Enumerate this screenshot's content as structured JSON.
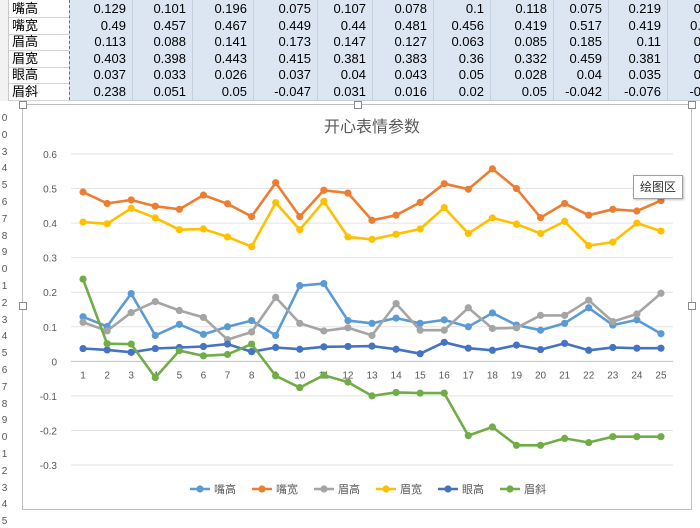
{
  "sheet": {
    "rows": [
      {
        "label": "嘴高",
        "values": [
          "0.129",
          "0.101",
          "0.196",
          "0.075",
          "0.107",
          "0.078",
          "0.1",
          "0.118",
          "0.075",
          "0.219",
          "0"
        ]
      },
      {
        "label": "嘴宽",
        "values": [
          "0.49",
          "0.457",
          "0.467",
          "0.449",
          "0.44",
          "0.481",
          "0.456",
          "0.419",
          "0.517",
          "0.419",
          "0."
        ]
      },
      {
        "label": "眉高",
        "values": [
          "0.113",
          "0.088",
          "0.141",
          "0.173",
          "0.147",
          "0.127",
          "0.063",
          "0.085",
          "0.185",
          "0.11",
          "0"
        ]
      },
      {
        "label": "眉宽",
        "values": [
          "0.403",
          "0.398",
          "0.443",
          "0.415",
          "0.381",
          "0.383",
          "0.36",
          "0.332",
          "0.459",
          "0.381",
          "0"
        ]
      },
      {
        "label": "眼高",
        "values": [
          "0.037",
          "0.033",
          "0.026",
          "0.037",
          "0.04",
          "0.043",
          "0.05",
          "0.028",
          "0.04",
          "0.035",
          "0"
        ]
      },
      {
        "label": "眉斜",
        "values": [
          "0.238",
          "0.051",
          "0.05",
          "-0.047",
          "0.031",
          "0.016",
          "0.02",
          "0.05",
          "-0.042",
          "-0.076",
          "-0"
        ]
      }
    ],
    "row_numbers": [
      "0",
      "0",
      "3",
      "4",
      "5",
      "6",
      "7",
      "8",
      "9",
      "0",
      "1",
      "2",
      "3",
      "4",
      "5",
      "6",
      "7",
      "8",
      "9",
      "0",
      "1",
      "2",
      "3",
      "4",
      "5"
    ]
  },
  "chart": {
    "tooltip": "绘图区"
  },
  "chart_data": {
    "type": "line",
    "title": "开心表情参数",
    "x": [
      1,
      2,
      3,
      4,
      5,
      6,
      7,
      8,
      9,
      10,
      11,
      12,
      13,
      14,
      15,
      16,
      17,
      18,
      19,
      20,
      21,
      22,
      23,
      24,
      25
    ],
    "ylim": [
      -0.3,
      0.6
    ],
    "yticks": [
      "0.6",
      "0.5",
      "0.4",
      "0.3",
      "0.2",
      "0.1",
      "0",
      "-0.1",
      "-0.2",
      "-0.3"
    ],
    "grid": true,
    "legend": "bottom",
    "series": [
      {
        "name": "嘴高",
        "color": "#5b9bd5",
        "values": [
          0.129,
          0.101,
          0.196,
          0.075,
          0.107,
          0.078,
          0.1,
          0.118,
          0.075,
          0.219,
          0.225,
          0.118,
          0.11,
          0.125,
          0.11,
          0.12,
          0.1,
          0.14,
          0.105,
          0.09,
          0.11,
          0.155,
          0.105,
          0.12,
          0.08
        ]
      },
      {
        "name": "嘴宽",
        "color": "#ed7d31",
        "values": [
          0.49,
          0.457,
          0.467,
          0.449,
          0.44,
          0.481,
          0.456,
          0.419,
          0.517,
          0.419,
          0.495,
          0.487,
          0.408,
          0.423,
          0.46,
          0.514,
          0.498,
          0.557,
          0.5,
          0.416,
          0.457,
          0.423,
          0.44,
          0.435,
          0.465
        ]
      },
      {
        "name": "眉高",
        "color": "#a5a5a5",
        "values": [
          0.113,
          0.088,
          0.141,
          0.173,
          0.147,
          0.127,
          0.063,
          0.085,
          0.185,
          0.11,
          0.088,
          0.097,
          0.075,
          0.167,
          0.09,
          0.09,
          0.155,
          0.095,
          0.097,
          0.133,
          0.133,
          0.177,
          0.115,
          0.137,
          0.197
        ]
      },
      {
        "name": "眉宽",
        "color": "#ffc000",
        "values": [
          0.403,
          0.398,
          0.443,
          0.415,
          0.381,
          0.383,
          0.36,
          0.332,
          0.459,
          0.381,
          0.463,
          0.36,
          0.353,
          0.368,
          0.383,
          0.445,
          0.37,
          0.415,
          0.397,
          0.37,
          0.405,
          0.335,
          0.345,
          0.4,
          0.377
        ]
      },
      {
        "name": "眼高",
        "color": "#4472c4",
        "values": [
          0.037,
          0.033,
          0.026,
          0.037,
          0.04,
          0.043,
          0.05,
          0.028,
          0.04,
          0.035,
          0.042,
          0.043,
          0.044,
          0.035,
          0.022,
          0.055,
          0.038,
          0.032,
          0.047,
          0.034,
          0.052,
          0.032,
          0.04,
          0.038,
          0.038
        ]
      },
      {
        "name": "眉斜",
        "color": "#70ad47",
        "values": [
          0.238,
          0.051,
          0.05,
          -0.047,
          0.031,
          0.016,
          0.02,
          0.05,
          -0.042,
          -0.076,
          -0.04,
          -0.06,
          -0.1,
          -0.09,
          -0.092,
          -0.092,
          -0.215,
          -0.19,
          -0.243,
          -0.243,
          -0.223,
          -0.235,
          -0.218,
          -0.218,
          -0.218
        ]
      }
    ]
  }
}
